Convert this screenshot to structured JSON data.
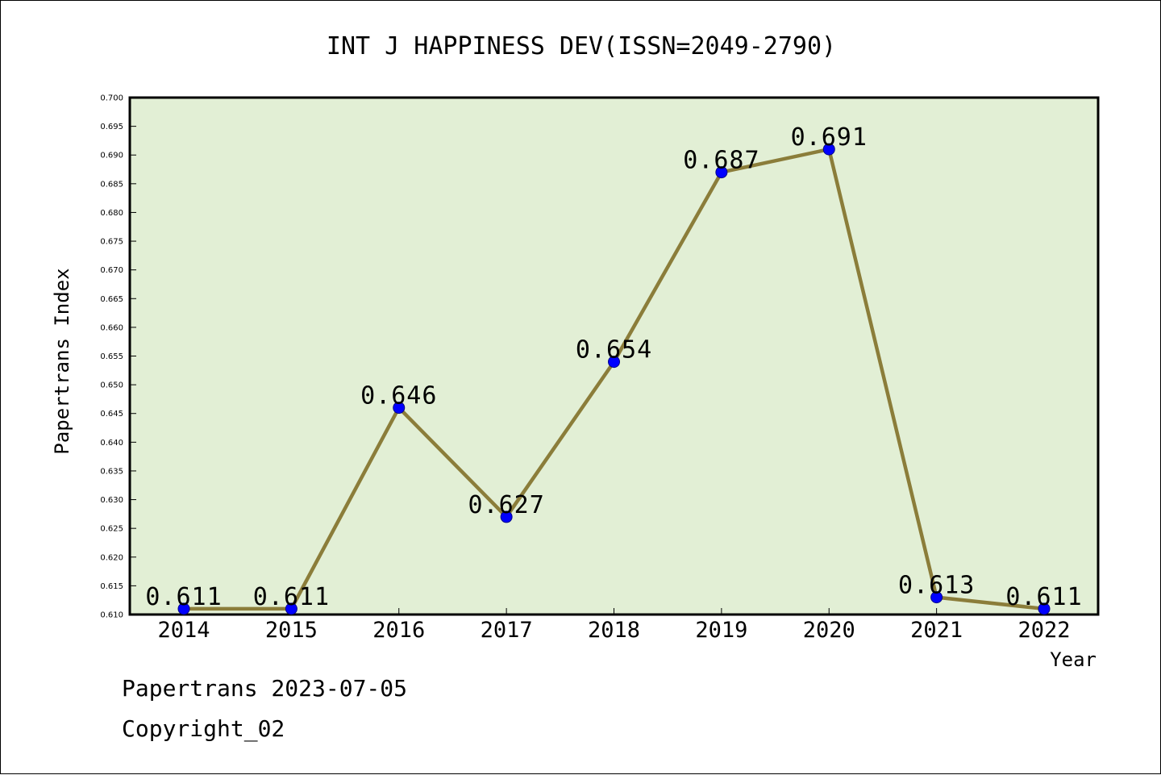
{
  "chart_data": {
    "type": "line",
    "title": "INT J HAPPINESS DEV(ISSN=2049-2790)",
    "xlabel": "Year",
    "ylabel": "Papertrans Index",
    "categories": [
      "2014",
      "2015",
      "2016",
      "2017",
      "2018",
      "2019",
      "2020",
      "2021",
      "2022"
    ],
    "series": [
      {
        "values": [
          0.611,
          0.611,
          0.646,
          0.627,
          0.654,
          0.687,
          0.691,
          0.613,
          0.611
        ],
        "labels": [
          "0.611",
          "0.611",
          "0.646",
          "0.627",
          "0.654",
          "0.687",
          "0.691",
          "0.613",
          "0.611"
        ]
      }
    ],
    "ylim": [
      0.61,
      0.7
    ],
    "ytick_step": 0.005,
    "grid": false,
    "colors": {
      "line": "#8b7d3a",
      "marker": "#0000ff",
      "plot_background": "#e2efd5",
      "axes": "#000000"
    }
  },
  "footer": {
    "line1": "Papertrans 2023-07-05",
    "line2": "Copyright_02"
  }
}
